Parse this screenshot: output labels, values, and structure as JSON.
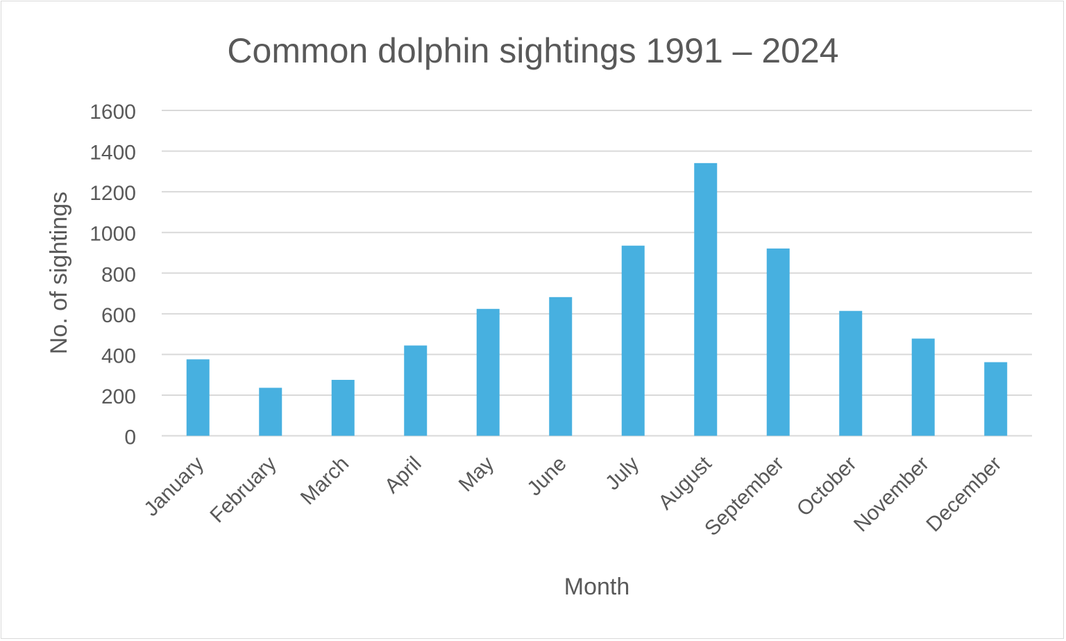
{
  "chart_data": {
    "type": "bar",
    "title": "Common dolphin sightings 1991 – 2024",
    "xlabel": "Month",
    "ylabel": "No. of sightings",
    "ylim": [
      0,
      1600
    ],
    "yticks": [
      0,
      200,
      400,
      600,
      800,
      1000,
      1200,
      1400,
      1600
    ],
    "grid": true,
    "legend": "none",
    "bar_color": "#47b0e0",
    "categories": [
      "January",
      "February",
      "March",
      "April",
      "May",
      "June",
      "July",
      "August",
      "September",
      "October",
      "November",
      "December"
    ],
    "values": [
      376,
      236,
      275,
      444,
      624,
      682,
      935,
      1341,
      921,
      614,
      478,
      362
    ]
  }
}
